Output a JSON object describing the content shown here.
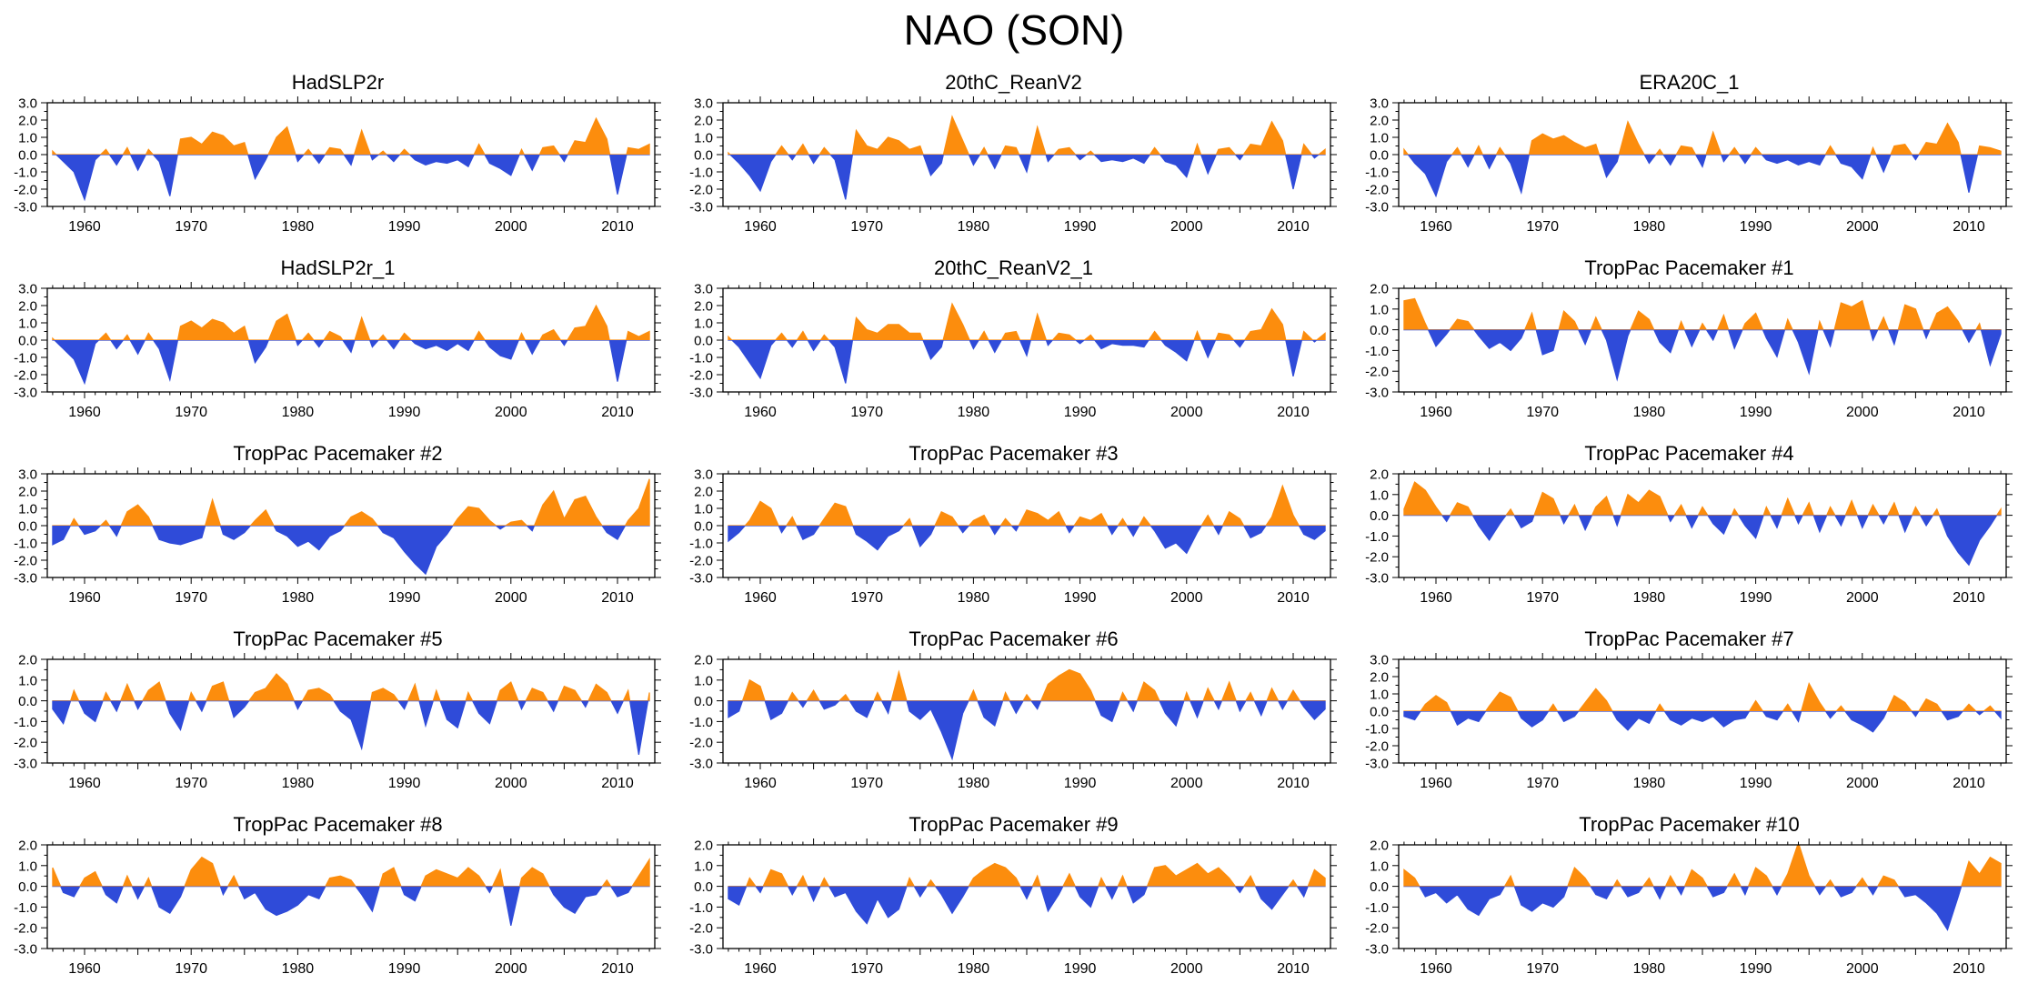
{
  "title": "NAO (SON)",
  "chart_data": {
    "type": "area",
    "title": "NAO (SON)",
    "grid": false,
    "x": {
      "start": 1957,
      "end": 2013,
      "tick_label_years": [
        1960,
        1970,
        1980,
        1990,
        2000,
        2010
      ]
    },
    "colors": {
      "positive": "#FC8D0D",
      "negative": "#2F4BD9",
      "axis": "#000000"
    },
    "panels": [
      {
        "title": "HadSLP2r",
        "ymin": -3,
        "ymax": 3,
        "start_year": 1957,
        "values": [
          0.2,
          -0.4,
          -1.0,
          -2.6,
          -0.3,
          0.3,
          -0.6,
          0.4,
          -0.9,
          0.3,
          -0.4,
          -2.4,
          0.9,
          1.0,
          0.6,
          1.3,
          1.1,
          0.5,
          0.7,
          -1.4,
          -0.3,
          1.0,
          1.6,
          -0.4,
          0.3,
          -0.5,
          0.4,
          0.3,
          -0.6,
          1.4,
          -0.3,
          0.2,
          -0.4,
          0.3,
          -0.3,
          -0.6,
          -0.4,
          -0.5,
          -0.3,
          -0.7,
          0.6,
          -0.5,
          -0.8,
          -1.2,
          0.3,
          -0.9,
          0.4,
          0.5,
          -0.4,
          0.8,
          0.7,
          2.1,
          0.9,
          -2.3,
          0.4,
          0.3,
          0.6
        ]
      },
      {
        "title": "20thC_ReanV2",
        "ymin": -3,
        "ymax": 3,
        "start_year": 1957,
        "values": [
          0.1,
          -0.5,
          -1.2,
          -2.1,
          -0.4,
          0.5,
          -0.3,
          0.6,
          -0.5,
          0.4,
          -0.3,
          -2.6,
          1.4,
          0.5,
          0.3,
          1.0,
          0.8,
          0.3,
          0.5,
          -1.2,
          -0.5,
          2.2,
          0.8,
          -0.6,
          0.4,
          -0.8,
          0.5,
          0.4,
          -1.0,
          1.6,
          -0.4,
          0.3,
          0.4,
          -0.3,
          0.2,
          -0.4,
          -0.3,
          -0.4,
          -0.2,
          -0.5,
          0.4,
          -0.4,
          -0.6,
          -1.3,
          0.6,
          -1.1,
          0.3,
          0.4,
          -0.3,
          0.6,
          0.5,
          1.9,
          0.8,
          -2.0,
          0.6,
          -0.2,
          0.3
        ]
      },
      {
        "title": "ERA20C_1",
        "ymin": -3,
        "ymax": 3,
        "start_year": 1957,
        "values": [
          0.3,
          -0.5,
          -1.1,
          -2.4,
          -0.4,
          0.4,
          -0.7,
          0.5,
          -0.8,
          0.4,
          -0.5,
          -2.2,
          0.8,
          1.2,
          0.9,
          1.1,
          0.7,
          0.4,
          0.6,
          -1.3,
          -0.4,
          1.9,
          0.6,
          -0.5,
          0.3,
          -0.6,
          0.5,
          0.4,
          -0.7,
          1.3,
          -0.4,
          0.4,
          -0.5,
          0.4,
          -0.3,
          -0.5,
          -0.3,
          -0.6,
          -0.4,
          -0.6,
          0.5,
          -0.5,
          -0.7,
          -1.4,
          0.4,
          -1.0,
          0.5,
          0.6,
          -0.3,
          0.7,
          0.6,
          1.8,
          0.7,
          -2.2,
          0.5,
          0.4,
          0.2
        ]
      },
      {
        "title": "HadSLP2r_1",
        "ymin": -3,
        "ymax": 3,
        "start_year": 1957,
        "values": [
          0.1,
          -0.5,
          -1.1,
          -2.5,
          -0.2,
          0.4,
          -0.5,
          0.3,
          -0.8,
          0.4,
          -0.5,
          -2.3,
          0.8,
          1.1,
          0.7,
          1.2,
          1.0,
          0.4,
          0.8,
          -1.3,
          -0.4,
          1.1,
          1.5,
          -0.3,
          0.4,
          -0.4,
          0.5,
          0.2,
          -0.7,
          1.3,
          -0.4,
          0.3,
          -0.5,
          0.4,
          -0.2,
          -0.5,
          -0.3,
          -0.6,
          -0.2,
          -0.6,
          0.5,
          -0.4,
          -0.9,
          -1.1,
          0.4,
          -0.8,
          0.3,
          0.6,
          -0.3,
          0.7,
          0.8,
          2.0,
          0.8,
          -2.4,
          0.5,
          0.2,
          0.5
        ]
      },
      {
        "title": "20thC_ReanV2_1",
        "ymin": -3,
        "ymax": 3,
        "start_year": 1957,
        "values": [
          0.2,
          -0.4,
          -1.3,
          -2.2,
          -0.3,
          0.4,
          -0.4,
          0.5,
          -0.6,
          0.3,
          -0.4,
          -2.5,
          1.3,
          0.6,
          0.4,
          0.9,
          0.9,
          0.4,
          0.4,
          -1.1,
          -0.4,
          2.1,
          0.9,
          -0.5,
          0.5,
          -0.7,
          0.4,
          0.5,
          -0.9,
          1.5,
          -0.3,
          0.4,
          0.3,
          -0.2,
          0.3,
          -0.5,
          -0.2,
          -0.3,
          -0.3,
          -0.4,
          0.5,
          -0.3,
          -0.7,
          -1.2,
          0.5,
          -1.0,
          0.4,
          0.3,
          -0.4,
          0.5,
          0.6,
          1.8,
          0.9,
          -2.1,
          0.5,
          -0.1,
          0.4
        ]
      },
      {
        "title": "TropPac Pacemaker #1",
        "ymin": -3,
        "ymax": 2,
        "start_year": 1957,
        "values": [
          1.4,
          1.5,
          0.3,
          -0.8,
          -0.2,
          0.5,
          0.4,
          -0.3,
          -0.9,
          -0.6,
          -1.0,
          -0.4,
          0.8,
          -1.2,
          -1.0,
          0.9,
          0.4,
          -0.7,
          0.6,
          -0.5,
          -2.4,
          -0.3,
          0.9,
          0.5,
          -0.6,
          -1.1,
          0.4,
          -0.8,
          0.3,
          -0.5,
          0.7,
          -0.9,
          0.3,
          0.8,
          -0.4,
          -1.3,
          0.5,
          -0.6,
          -2.1,
          0.4,
          -0.8,
          1.3,
          1.1,
          1.4,
          -0.5,
          0.6,
          -0.7,
          1.2,
          1.0,
          -0.4,
          0.8,
          1.1,
          0.4,
          -0.6,
          0.3,
          -1.7,
          -0.2
        ]
      },
      {
        "title": "TropPac Pacemaker #2",
        "ymin": -3,
        "ymax": 3,
        "start_year": 1957,
        "values": [
          -1.1,
          -0.8,
          0.4,
          -0.5,
          -0.3,
          0.3,
          -0.6,
          0.8,
          1.2,
          0.5,
          -0.8,
          -1.0,
          -1.1,
          -0.9,
          -0.7,
          1.5,
          -0.5,
          -0.8,
          -0.4,
          0.3,
          0.9,
          -0.3,
          -0.6,
          -1.2,
          -0.9,
          -1.4,
          -0.6,
          -0.3,
          0.5,
          0.8,
          0.4,
          -0.4,
          -0.7,
          -1.5,
          -2.2,
          -2.8,
          -1.2,
          -0.5,
          0.4,
          1.1,
          1.0,
          0.3,
          -0.2,
          0.2,
          0.3,
          -0.3,
          1.2,
          2.0,
          0.4,
          1.5,
          1.7,
          0.5,
          -0.4,
          -0.8,
          0.3,
          1.0,
          2.7
        ]
      },
      {
        "title": "TropPac Pacemaker #3",
        "ymin": -3,
        "ymax": 3,
        "start_year": 1957,
        "values": [
          -0.9,
          -0.4,
          0.3,
          1.4,
          1.0,
          -0.4,
          0.5,
          -0.8,
          -0.5,
          0.4,
          1.3,
          1.1,
          -0.5,
          -0.9,
          -1.4,
          -0.6,
          -0.3,
          0.4,
          -1.2,
          -0.5,
          0.8,
          0.5,
          -0.4,
          0.3,
          0.6,
          -0.5,
          0.4,
          -0.3,
          0.9,
          0.7,
          0.3,
          0.8,
          -0.4,
          0.5,
          0.3,
          0.7,
          -0.5,
          0.4,
          -0.6,
          0.5,
          -0.3,
          -1.3,
          -1.0,
          -1.6,
          -0.4,
          0.6,
          -0.5,
          0.8,
          0.4,
          -0.7,
          -0.4,
          0.5,
          2.3,
          0.6,
          -0.5,
          -0.8,
          -0.3
        ]
      },
      {
        "title": "TropPac Pacemaker #4",
        "ymin": -3,
        "ymax": 2,
        "start_year": 1957,
        "values": [
          0.3,
          1.6,
          1.2,
          0.4,
          -0.3,
          0.6,
          0.4,
          -0.5,
          -1.2,
          -0.4,
          0.3,
          -0.6,
          -0.3,
          1.1,
          0.8,
          -0.4,
          0.5,
          -0.7,
          0.4,
          0.9,
          -0.5,
          1.0,
          0.6,
          1.2,
          0.9,
          -0.3,
          0.5,
          -0.6,
          0.4,
          -0.4,
          -0.9,
          0.3,
          -0.5,
          -1.1,
          0.4,
          -0.6,
          0.8,
          -0.4,
          0.6,
          -0.8,
          0.4,
          -0.5,
          0.7,
          -0.6,
          0.5,
          -0.4,
          0.6,
          -0.8,
          0.4,
          -0.5,
          0.3,
          -1.0,
          -1.8,
          -2.4,
          -1.2,
          -0.5,
          0.3
        ]
      },
      {
        "title": "TropPac Pacemaker #5",
        "ymin": -3,
        "ymax": 2,
        "start_year": 1957,
        "values": [
          -0.4,
          -1.1,
          0.5,
          -0.6,
          -1.0,
          0.4,
          -0.5,
          0.8,
          -0.4,
          0.5,
          0.9,
          -0.6,
          -1.4,
          0.4,
          -0.5,
          0.7,
          0.9,
          -0.8,
          -0.3,
          0.4,
          0.6,
          1.3,
          0.8,
          -0.4,
          0.5,
          0.6,
          0.3,
          -0.5,
          -0.9,
          -2.3,
          0.4,
          0.6,
          0.3,
          -0.4,
          0.8,
          -1.2,
          0.5,
          -0.9,
          -1.3,
          0.4,
          -0.6,
          -1.1,
          0.5,
          0.9,
          -0.4,
          0.6,
          0.4,
          -0.5,
          0.7,
          0.5,
          -0.3,
          0.8,
          0.4,
          -0.6,
          0.5,
          -2.6,
          0.4
        ]
      },
      {
        "title": "TropPac Pacemaker #6",
        "ymin": -3,
        "ymax": 2,
        "start_year": 1957,
        "values": [
          -0.8,
          -0.5,
          1.0,
          0.7,
          -0.9,
          -0.6,
          0.4,
          -0.3,
          0.5,
          -0.4,
          -0.2,
          0.3,
          -0.5,
          -0.8,
          0.4,
          -0.6,
          1.4,
          -0.5,
          -0.9,
          -0.4,
          -1.5,
          -2.8,
          -0.6,
          0.5,
          -0.8,
          -1.2,
          0.4,
          -0.6,
          0.3,
          -0.4,
          0.8,
          1.2,
          1.5,
          1.3,
          0.5,
          -0.7,
          -1.0,
          0.4,
          -0.5,
          0.9,
          0.5,
          -0.6,
          -1.2,
          0.4,
          -0.8,
          0.6,
          -0.4,
          0.9,
          -0.5,
          0.4,
          -0.7,
          0.6,
          -0.4,
          0.5,
          -0.3,
          -0.9,
          -0.4
        ]
      },
      {
        "title": "TropPac Pacemaker #7",
        "ymin": -3,
        "ymax": 3,
        "start_year": 1957,
        "values": [
          -0.3,
          -0.5,
          0.4,
          0.9,
          0.5,
          -0.8,
          -0.4,
          -0.6,
          0.3,
          1.1,
          0.8,
          -0.4,
          -0.9,
          -0.5,
          0.4,
          -0.6,
          -0.3,
          0.5,
          1.3,
          0.6,
          -0.5,
          -1.1,
          -0.4,
          -0.7,
          0.4,
          -0.5,
          -0.8,
          -0.4,
          -0.6,
          -0.3,
          -0.9,
          -0.5,
          -0.4,
          0.6,
          -0.3,
          -0.5,
          0.4,
          -0.6,
          1.6,
          0.5,
          -0.4,
          0.3,
          -0.5,
          -0.8,
          -1.2,
          -0.4,
          0.9,
          0.5,
          -0.3,
          0.7,
          0.4,
          -0.5,
          -0.3,
          0.4,
          -0.2,
          0.3,
          -0.4
        ]
      },
      {
        "title": "TropPac Pacemaker #8",
        "ymin": -3,
        "ymax": 2,
        "start_year": 1957,
        "values": [
          0.9,
          -0.3,
          -0.5,
          0.4,
          0.7,
          -0.4,
          -0.8,
          0.5,
          -0.6,
          0.4,
          -1.0,
          -1.3,
          -0.5,
          0.8,
          1.4,
          1.1,
          -0.4,
          0.5,
          -0.6,
          -0.3,
          -1.1,
          -1.4,
          -1.2,
          -0.9,
          -0.4,
          -0.6,
          0.4,
          0.5,
          0.3,
          -0.4,
          -1.2,
          0.6,
          0.9,
          -0.4,
          -0.7,
          0.5,
          0.8,
          0.6,
          0.4,
          0.9,
          0.5,
          -0.3,
          0.8,
          -1.9,
          0.4,
          0.9,
          0.6,
          -0.4,
          -1.0,
          -1.3,
          -0.5,
          -0.4,
          0.3,
          -0.5,
          -0.3,
          0.5,
          1.3
        ]
      },
      {
        "title": "TropPac Pacemaker #9",
        "ymin": -3,
        "ymax": 2,
        "start_year": 1957,
        "values": [
          -0.6,
          -0.9,
          0.4,
          -0.3,
          0.8,
          0.6,
          -0.4,
          0.5,
          -0.7,
          0.4,
          -0.5,
          -0.3,
          -1.2,
          -1.8,
          -0.6,
          -1.5,
          -1.1,
          0.4,
          -0.5,
          0.3,
          -0.4,
          -1.3,
          -0.5,
          0.4,
          0.8,
          1.1,
          0.9,
          0.4,
          -0.6,
          0.5,
          -1.2,
          -0.4,
          0.6,
          -0.5,
          -1.0,
          0.4,
          -0.6,
          0.5,
          -0.8,
          -0.4,
          0.9,
          1.0,
          0.5,
          0.8,
          1.1,
          0.6,
          0.9,
          0.4,
          -0.3,
          0.5,
          -0.6,
          -1.1,
          -0.4,
          0.3,
          -0.5,
          0.8,
          0.4
        ]
      },
      {
        "title": "TropPac Pacemaker #10",
        "ymin": -3,
        "ymax": 2,
        "start_year": 1957,
        "values": [
          0.8,
          0.4,
          -0.5,
          -0.3,
          -0.8,
          -0.4,
          -1.1,
          -1.4,
          -0.6,
          -0.4,
          0.5,
          -0.9,
          -1.2,
          -0.8,
          -1.0,
          -0.5,
          0.9,
          0.4,
          -0.4,
          -0.6,
          0.3,
          -0.5,
          -0.3,
          0.4,
          -0.6,
          0.5,
          -0.4,
          0.8,
          0.4,
          -0.5,
          -0.3,
          0.6,
          -0.4,
          0.9,
          0.5,
          -0.4,
          0.6,
          2.1,
          0.5,
          -0.4,
          0.3,
          -0.5,
          -0.3,
          0.4,
          -0.4,
          0.5,
          0.3,
          -0.5,
          -0.4,
          -0.8,
          -1.3,
          -2.1,
          -0.5,
          1.2,
          0.6,
          1.4,
          1.1
        ]
      }
    ]
  }
}
